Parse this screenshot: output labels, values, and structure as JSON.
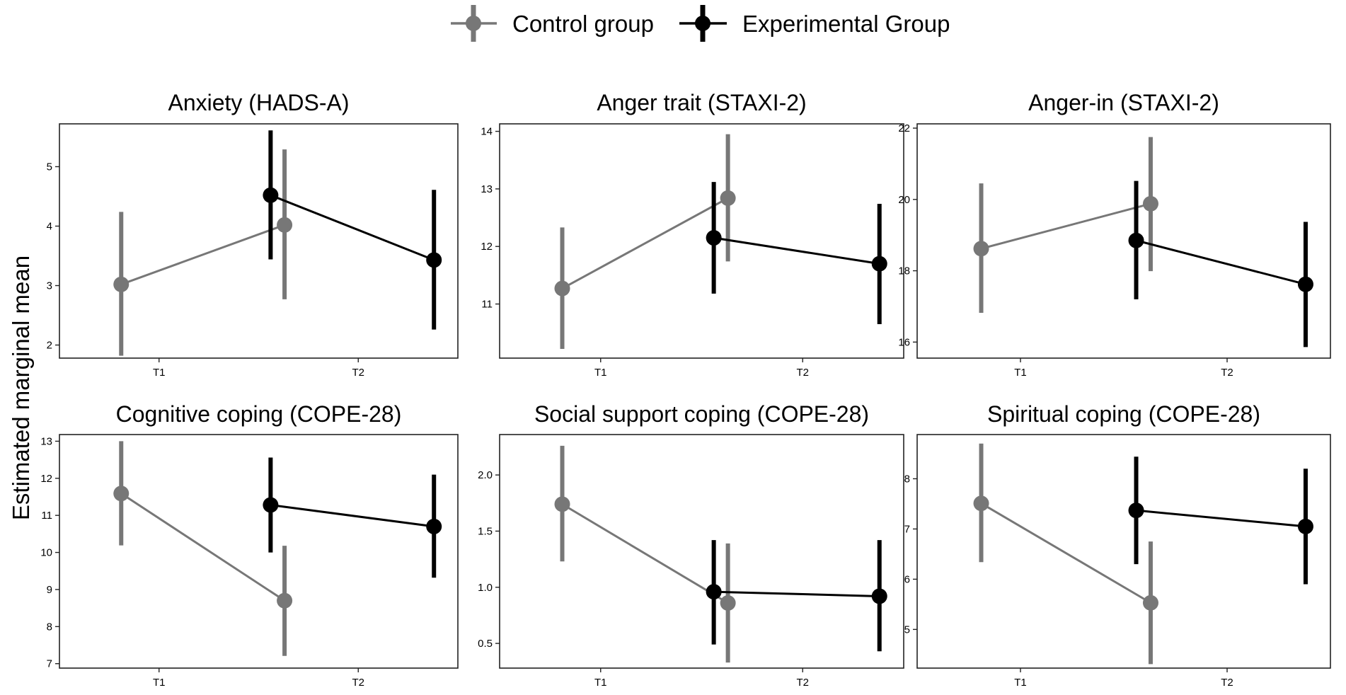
{
  "legend": {
    "items": [
      {
        "label": "Control group",
        "color": "#777777"
      },
      {
        "label": "Experimental Group",
        "color": "#000000"
      }
    ]
  },
  "ylabel": "Estimated marginal mean",
  "chart_data": [
    {
      "type": "line",
      "title": "Anxiety (HADS-A)",
      "categories": [
        "T1",
        "T2"
      ],
      "ylim": [
        1.78,
        5.72
      ],
      "yticks": [
        2,
        3,
        4,
        5
      ],
      "yticklabels": [
        "2",
        "3",
        "4",
        "5"
      ],
      "series": [
        {
          "name": "Control group",
          "color": "#777777",
          "means": [
            3.02,
            4.02
          ],
          "lower": [
            1.82,
            2.77
          ],
          "upper": [
            4.24,
            5.29
          ]
        },
        {
          "name": "Experimental Group",
          "color": "#000000",
          "means": [
            4.52,
            3.43
          ],
          "lower": [
            3.44,
            2.26
          ],
          "upper": [
            5.61,
            4.61
          ]
        }
      ]
    },
    {
      "type": "line",
      "title": "Anger trait (STAXI-2)",
      "categories": [
        "T1",
        "T2"
      ],
      "ylim": [
        10.06,
        14.13
      ],
      "yticks": [
        11,
        12,
        13,
        14
      ],
      "yticklabels": [
        "11",
        "12",
        "13",
        "14"
      ],
      "series": [
        {
          "name": "Control group",
          "color": "#777777",
          "means": [
            11.27,
            12.84
          ],
          "lower": [
            10.22,
            11.74
          ],
          "upper": [
            12.33,
            13.95
          ]
        },
        {
          "name": "Experimental Group",
          "color": "#000000",
          "means": [
            12.15,
            11.7
          ],
          "lower": [
            11.18,
            10.65
          ],
          "upper": [
            13.12,
            12.74
          ]
        }
      ]
    },
    {
      "type": "line",
      "title": "Anger-in (STAXI-2)",
      "categories": [
        "T1",
        "T2"
      ],
      "ylim": [
        15.55,
        22.12
      ],
      "yticks": [
        16,
        18,
        20,
        22
      ],
      "yticklabels": [
        "16",
        "18",
        "20",
        "22"
      ],
      "series": [
        {
          "name": "Control group",
          "color": "#777777",
          "means": [
            18.62,
            19.88
          ],
          "lower": [
            16.82,
            17.99
          ],
          "upper": [
            20.45,
            21.75
          ]
        },
        {
          "name": "Experimental Group",
          "color": "#000000",
          "means": [
            18.85,
            17.62
          ],
          "lower": [
            17.2,
            15.86
          ],
          "upper": [
            20.52,
            19.37
          ]
        }
      ]
    },
    {
      "type": "line",
      "title": "Cognitive coping (COPE-28)",
      "categories": [
        "T1",
        "T2"
      ],
      "ylim": [
        6.88,
        13.18
      ],
      "yticks": [
        7,
        8,
        9,
        10,
        11,
        12,
        13
      ],
      "yticklabels": [
        "7",
        "8",
        "9",
        "10",
        "11",
        "12",
        "13"
      ],
      "series": [
        {
          "name": "Control group",
          "color": "#777777",
          "means": [
            11.59,
            8.7
          ],
          "lower": [
            10.19,
            7.21
          ],
          "upper": [
            13.0,
            10.18
          ]
        },
        {
          "name": "Experimental Group",
          "color": "#000000",
          "means": [
            11.28,
            10.7
          ],
          "lower": [
            10.0,
            9.32
          ],
          "upper": [
            12.56,
            12.1
          ]
        }
      ]
    },
    {
      "type": "line",
      "title": "Social support coping (COPE-28)",
      "categories": [
        "T1",
        "T2"
      ],
      "ylim": [
        0.28,
        2.36
      ],
      "yticks": [
        0.5,
        1.0,
        1.5,
        2.0
      ],
      "yticklabels": [
        "0.5",
        "1.0",
        "1.5",
        "2.0"
      ],
      "series": [
        {
          "name": "Control group",
          "color": "#777777",
          "means": [
            1.74,
            0.86
          ],
          "lower": [
            1.23,
            0.33
          ],
          "upper": [
            2.26,
            1.39
          ]
        },
        {
          "name": "Experimental Group",
          "color": "#000000",
          "means": [
            0.96,
            0.92
          ],
          "lower": [
            0.49,
            0.43
          ],
          "upper": [
            1.42,
            1.42
          ]
        }
      ]
    },
    {
      "type": "line",
      "title": "Spiritual coping (COPE-28)",
      "categories": [
        "T1",
        "T2"
      ],
      "ylim": [
        4.23,
        8.88
      ],
      "yticks": [
        5,
        6,
        7,
        8
      ],
      "yticklabels": [
        "5",
        "6",
        "7",
        "8"
      ],
      "series": [
        {
          "name": "Control group",
          "color": "#777777",
          "means": [
            7.51,
            5.53
          ],
          "lower": [
            6.34,
            4.31
          ],
          "upper": [
            8.7,
            6.75
          ]
        },
        {
          "name": "Experimental Group",
          "color": "#000000",
          "means": [
            7.37,
            7.05
          ],
          "lower": [
            6.3,
            5.9
          ],
          "upper": [
            8.44,
            8.2
          ]
        }
      ]
    }
  ]
}
